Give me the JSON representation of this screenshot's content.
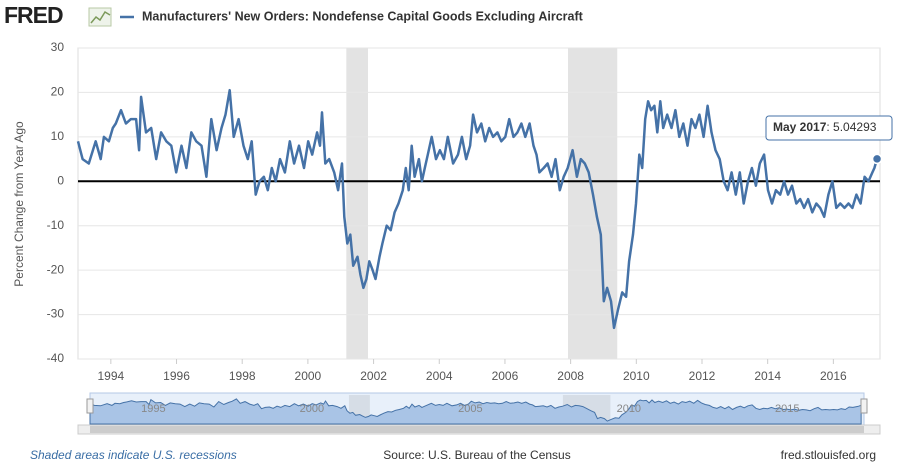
{
  "logo": "FRED",
  "chart_data": {
    "type": "line",
    "series": [
      {
        "name": "Manufacturers' New Orders: Nondefense Capital Goods Excluding Aircraft",
        "color": "#4572a7",
        "x": [
          1993.0,
          1993.14,
          1993.33,
          1993.54,
          1993.69,
          1993.79,
          1993.94,
          1994.06,
          1994.15,
          1994.31,
          1994.46,
          1994.61,
          1994.77,
          1994.86,
          1994.92,
          1995.07,
          1995.23,
          1995.38,
          1995.53,
          1995.69,
          1995.84,
          1995.99,
          1996.15,
          1996.3,
          1996.45,
          1996.6,
          1996.76,
          1996.91,
          1997.06,
          1997.22,
          1997.37,
          1997.49,
          1997.62,
          1997.74,
          1997.89,
          1998.04,
          1998.17,
          1998.29,
          1998.41,
          1998.53,
          1998.66,
          1998.78,
          1998.9,
          1999.02,
          1999.15,
          1999.3,
          1999.45,
          1999.58,
          1999.73,
          1999.88,
          2000.01,
          2000.13,
          2000.28,
          2000.37,
          2000.43,
          2000.53,
          2000.65,
          2000.8,
          2000.92,
          2001.04,
          2001.11,
          2001.2,
          2001.29,
          2001.38,
          2001.51,
          2001.6,
          2001.69,
          2001.78,
          2001.87,
          2001.97,
          2002.06,
          2002.18,
          2002.27,
          2002.4,
          2002.52,
          2002.64,
          2002.76,
          2002.89,
          2002.98,
          2003.07,
          2003.16,
          2003.25,
          2003.38,
          2003.47,
          2003.56,
          2003.65,
          2003.77,
          2003.9,
          2004.02,
          2004.14,
          2004.26,
          2004.42,
          2004.57,
          2004.69,
          2004.82,
          2004.94,
          2005.03,
          2005.15,
          2005.28,
          2005.4,
          2005.52,
          2005.64,
          2005.77,
          2005.89,
          2006.01,
          2006.13,
          2006.26,
          2006.38,
          2006.5,
          2006.62,
          2006.75,
          2006.87,
          2006.96,
          2007.05,
          2007.18,
          2007.3,
          2007.42,
          2007.54,
          2007.67,
          2007.79,
          2007.91,
          2008.06,
          2008.19,
          2008.31,
          2008.43,
          2008.55,
          2008.68,
          2008.8,
          2008.92,
          2009.01,
          2009.11,
          2009.23,
          2009.32,
          2009.44,
          2009.57,
          2009.69,
          2009.78,
          2009.9,
          2009.99,
          2010.09,
          2010.18,
          2010.27,
          2010.36,
          2010.45,
          2010.55,
          2010.64,
          2010.73,
          2010.82,
          2010.94,
          2011.07,
          2011.19,
          2011.31,
          2011.43,
          2011.56,
          2011.68,
          2011.8,
          2011.92,
          2012.05,
          2012.17,
          2012.29,
          2012.41,
          2012.54,
          2012.66,
          2012.78,
          2012.9,
          2013.03,
          2013.15,
          2013.27,
          2013.4,
          2013.52,
          2013.64,
          2013.76,
          2013.89,
          2014.01,
          2014.13,
          2014.25,
          2014.38,
          2014.5,
          2014.62,
          2014.74,
          2014.87,
          2014.99,
          2015.11,
          2015.23,
          2015.36,
          2015.48,
          2015.6,
          2015.72,
          2015.85,
          2015.97,
          2016.09,
          2016.21,
          2016.34,
          2016.46,
          2016.58,
          2016.7,
          2016.83,
          2016.95,
          2017.07,
          2017.19,
          2017.25,
          2017.33
        ],
        "values": [
          9,
          5,
          4,
          9,
          5,
          10,
          9,
          12,
          13,
          16,
          13,
          14,
          14,
          7,
          19,
          11,
          12,
          5,
          11,
          9,
          8,
          2,
          8,
          3,
          11,
          9,
          8,
          1,
          14,
          7,
          12,
          15,
          20.5,
          10,
          14,
          8,
          5,
          9,
          -3,
          0,
          1,
          -2,
          3,
          0,
          5,
          2,
          9,
          4,
          8,
          3,
          9,
          6,
          11,
          8,
          15.5,
          4,
          5,
          2,
          -2,
          4,
          -8,
          -14,
          -12,
          -19,
          -17,
          -21,
          -24,
          -22,
          -18,
          -20,
          -22,
          -17,
          -14,
          -10,
          -11,
          -7,
          -5,
          -2,
          3,
          -2,
          8,
          1,
          5,
          0,
          3,
          6,
          10,
          5,
          7,
          5,
          10,
          4,
          6,
          10,
          5,
          8,
          15,
          11,
          13,
          9,
          12,
          10,
          11,
          9,
          10,
          14,
          10,
          11,
          13,
          10,
          13,
          8,
          6,
          2,
          3,
          4,
          1,
          5,
          -2,
          1,
          3,
          7,
          1,
          5,
          4,
          2,
          -3,
          -8,
          -12,
          -27,
          -24,
          -27,
          -33,
          -29,
          -25,
          -26,
          -18,
          -12,
          -5,
          6,
          3,
          14,
          18,
          16,
          17,
          11,
          18,
          12,
          15,
          12,
          16,
          10,
          13,
          8,
          14,
          12,
          15,
          10,
          17,
          11,
          7,
          5,
          0,
          -2,
          2,
          -3,
          2,
          -5,
          0,
          3,
          -1,
          4,
          6,
          -2,
          -5,
          -2,
          -3,
          0,
          -3,
          -1,
          -5,
          -4,
          -6,
          -4,
          -7,
          -5,
          -6,
          -8,
          -3,
          0,
          -6,
          -5,
          -6,
          -5,
          -6,
          -3,
          -5,
          1,
          0,
          2,
          3,
          5.04293
        ]
      }
    ],
    "y_label": "Percent Change from Year Ago",
    "xlim": [
      1993.0,
      2017.42
    ],
    "xticks": [
      1994,
      1996,
      1998,
      2000,
      2002,
      2004,
      2006,
      2008,
      2010,
      2012,
      2014,
      2016
    ],
    "ylim": [
      -40,
      30
    ],
    "yticks": [
      -40,
      -30,
      -20,
      -10,
      0,
      10,
      20,
      30
    ],
    "grid": true,
    "recessions": [
      [
        2001.17,
        2001.83
      ],
      [
        2007.92,
        2009.42
      ]
    ],
    "tooltip_date": "May 2017",
    "navigator_ticks": [
      1995,
      2000,
      2005,
      2010,
      2015
    ]
  },
  "footer": {
    "note": "Shaded areas indicate U.S. recessions",
    "source": "Source: U.S. Bureau of the Census",
    "site": "fred.stlouisfed.org"
  }
}
